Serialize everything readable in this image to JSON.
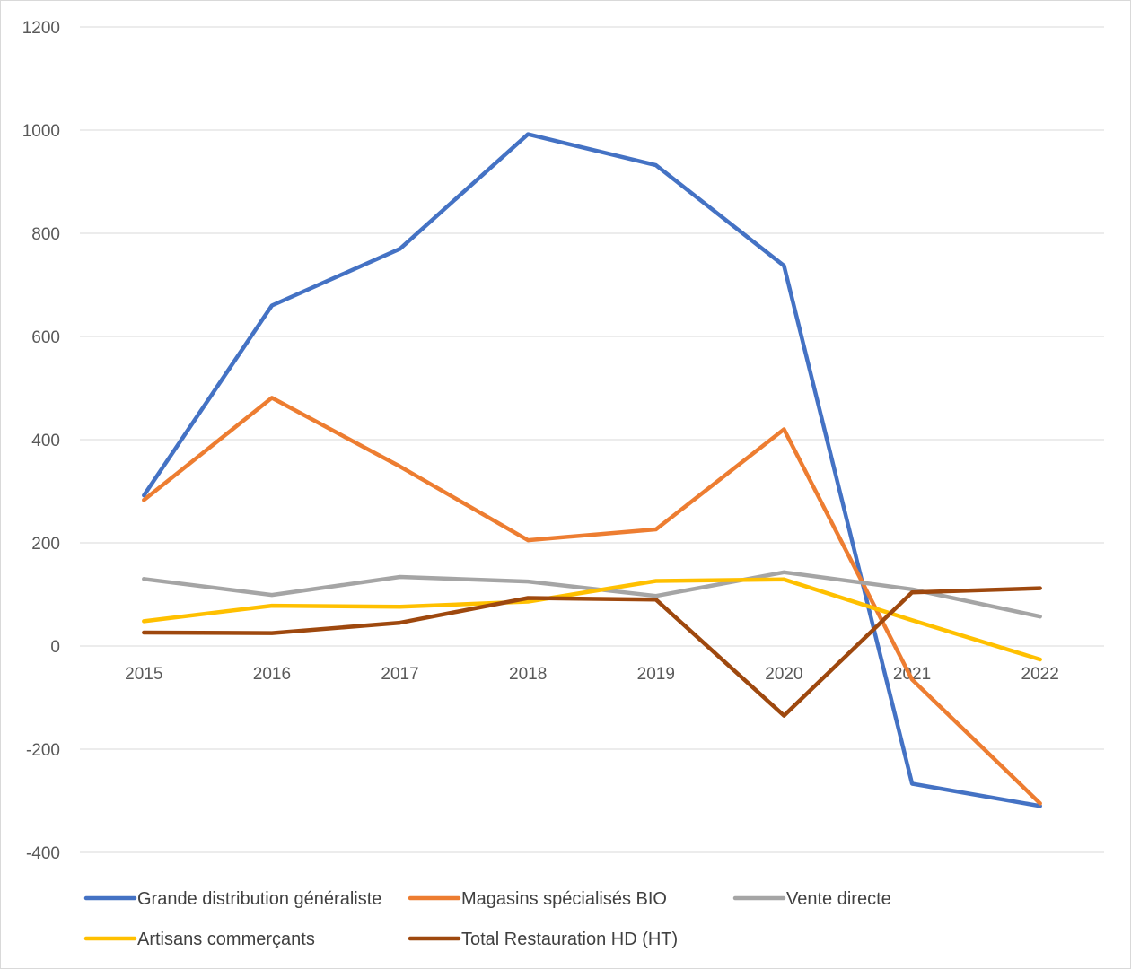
{
  "chart_data": {
    "type": "line",
    "title": "",
    "xlabel": "",
    "ylabel": "",
    "x": [
      "2015",
      "2016",
      "2017",
      "2018",
      "2019",
      "2020",
      "2021",
      "2022"
    ],
    "ylim": [
      -400,
      1200
    ],
    "yticks": [
      -400,
      -200,
      0,
      200,
      400,
      600,
      800,
      1000,
      1200
    ],
    "grid": true,
    "legend_position": "bottom",
    "series": [
      {
        "name": "Grande distribution généraliste",
        "color": "#4472C4",
        "values": [
          292,
          660,
          770,
          992,
          932,
          737,
          -267,
          -310
        ]
      },
      {
        "name": "Magasins spécialisés BIO",
        "color": "#ED7D31",
        "values": [
          283,
          481,
          348,
          205,
          226,
          420,
          -65,
          -305
        ]
      },
      {
        "name": "Vente directe",
        "color": "#A5A5A5",
        "values": [
          130,
          99,
          134,
          125,
          97,
          143,
          110,
          57
        ]
      },
      {
        "name": "Artisans commerçants",
        "color": "#FFC000",
        "values": [
          48,
          78,
          76,
          86,
          126,
          129,
          50,
          -26
        ]
      },
      {
        "name": "Total Restauration HD (HT)",
        "color": "#9E480E",
        "values": [
          26,
          25,
          45,
          93,
          90,
          -135,
          104,
          112
        ]
      }
    ]
  }
}
